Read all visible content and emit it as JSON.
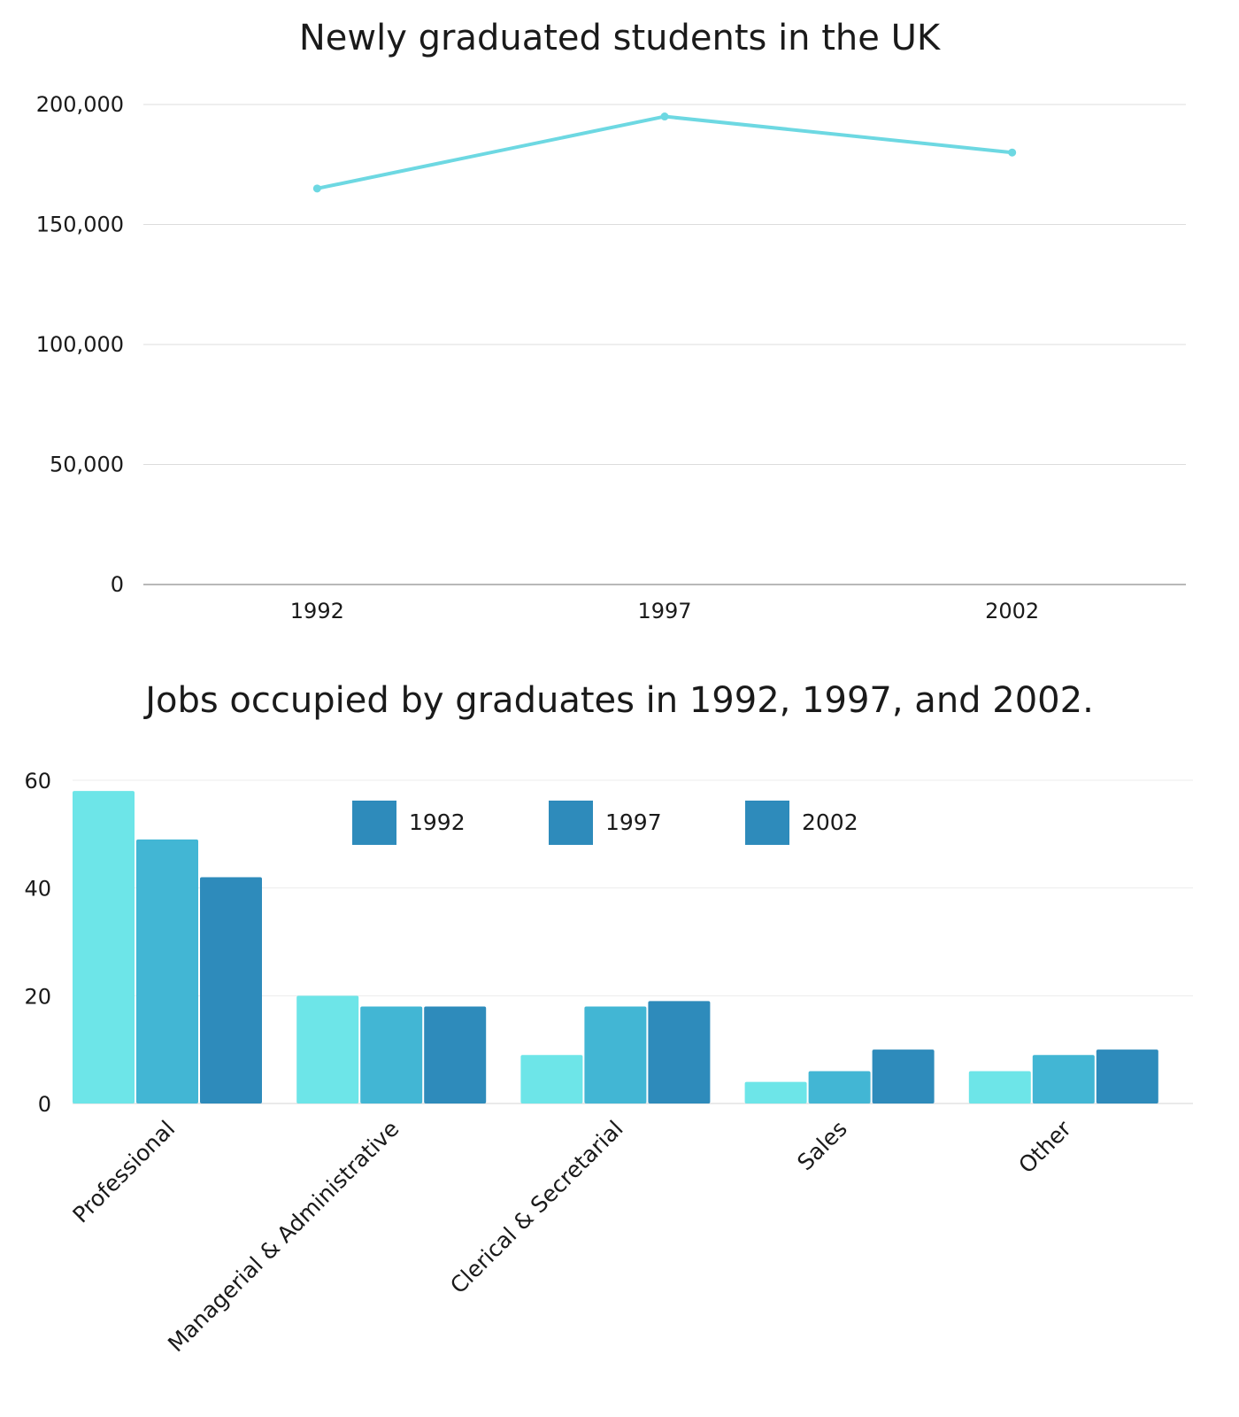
{
  "chart_data": [
    {
      "type": "line",
      "title": "Newly graduated students in the UK",
      "xlabel": "",
      "ylabel": "",
      "x": [
        "1992",
        "1997",
        "2002"
      ],
      "series": [
        {
          "values": [
            165000,
            195000,
            180000
          ],
          "color": "#6dd8e2"
        }
      ],
      "yticks": [
        "200,000",
        "150,000",
        "100,000",
        "50,000",
        "0"
      ],
      "ylim": [
        0,
        200000
      ],
      "grid": true
    },
    {
      "type": "bar",
      "title": "Jobs occupied by graduates in 1992, 1997, and 2002.",
      "xlabel": "",
      "ylabel": "",
      "categories": [
        "Professional",
        "Managerial & Administrative",
        "Clerical & Secretarial",
        "Sales",
        "Other"
      ],
      "series": [
        {
          "name": "1992",
          "values": [
            58,
            20,
            9,
            4,
            6
          ],
          "color": "#6de5e8"
        },
        {
          "name": "1997",
          "values": [
            49,
            18,
            18,
            6,
            9
          ],
          "color": "#42b6d4"
        },
        {
          "name": "2002",
          "values": [
            42,
            18,
            19,
            10,
            10
          ],
          "color": "#2e8bbb"
        }
      ],
      "legend": {
        "items": [
          "1992",
          "1997",
          "2002"
        ],
        "swatch_color": "#2e8bbb",
        "placement": "top-center"
      },
      "yticks": [
        "60",
        "40",
        "20",
        "0"
      ],
      "ylim": [
        0,
        60
      ],
      "grid": true
    }
  ]
}
